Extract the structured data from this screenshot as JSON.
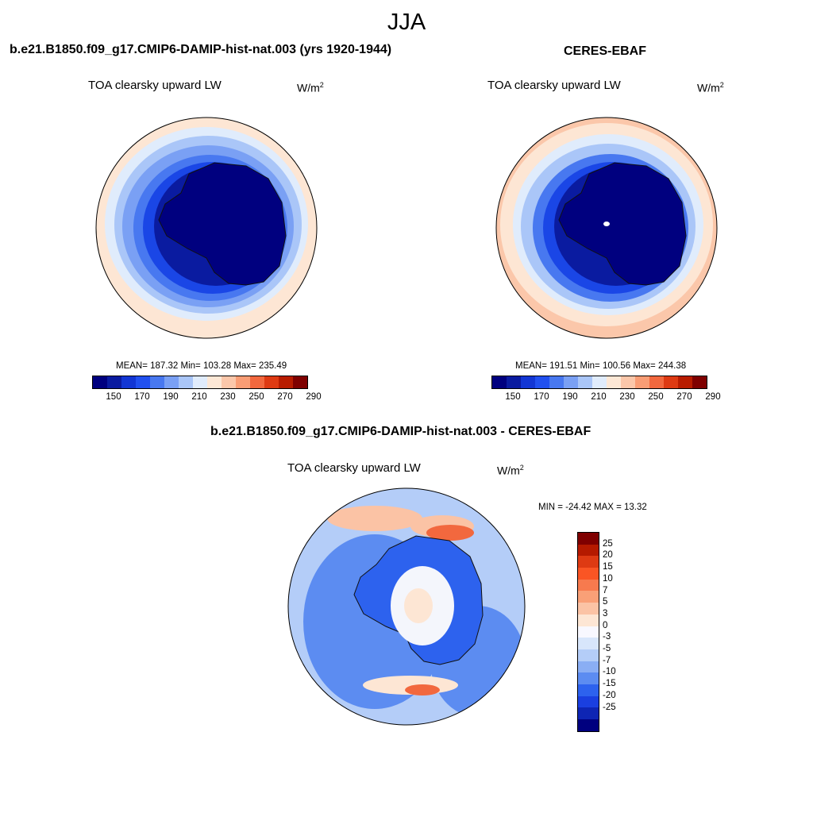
{
  "season": "JJA",
  "panel_left": {
    "title": "b.e21.B1850.f09_g17.CMIP6-DAMIP-hist-nat.003 (yrs 1920-1944)",
    "variable": "TOA clearsky upward LW",
    "units_base": "W/m",
    "units_exp": "2",
    "stats": "MEAN= 187.32  Min= 103.28  Max= 235.49"
  },
  "panel_right": {
    "title": "CERES-EBAF",
    "variable": "TOA clearsky upward LW",
    "units_base": "W/m",
    "units_exp": "2",
    "stats": "MEAN= 191.51  Min= 100.56  Max= 244.38"
  },
  "panel_diff": {
    "title": "b.e21.B1850.f09_g17.CMIP6-DAMIP-hist-nat.003 - CERES-EBAF",
    "variable": "TOA clearsky upward LW",
    "units_base": "W/m",
    "units_exp": "2",
    "stats": "MIN = -24.42 MAX =  13.32"
  },
  "colorbar_abs": {
    "colors": [
      "#00007f",
      "#0a1ba0",
      "#1236d4",
      "#2150ef",
      "#4878f0",
      "#7aa0f4",
      "#aac6f8",
      "#e0ecfc",
      "#fde8d6",
      "#fbc7aa",
      "#f99d75",
      "#f2683e",
      "#de3a13",
      "#b81c00",
      "#7f0000"
    ],
    "tick_labels": [
      "150",
      "170",
      "190",
      "210",
      "230",
      "250",
      "270",
      "290"
    ]
  },
  "colorbar_diff": {
    "colors": [
      "#7f0000",
      "#b51a00",
      "#de3a13",
      "#fa5524",
      "#f77a4e",
      "#f9a077",
      "#fbc3a5",
      "#fde6d4",
      "#f8f8ff",
      "#d8e6fb",
      "#b4cdf8",
      "#8aaef4",
      "#5c8cf1",
      "#2d62ee",
      "#1a3fe0",
      "#0e25b4",
      "#00007f"
    ],
    "tick_labels": [
      "25",
      "20",
      "15",
      "10",
      "7",
      "5",
      "3",
      "0",
      "-3",
      "-5",
      "-7",
      "-10",
      "-15",
      "-20",
      "-25"
    ]
  },
  "map_colors": {
    "ocean_warm": "#fde6d4",
    "ocean_warmer": "#fbc7aa",
    "ocean_cool": "#e0ecfc",
    "pale_blue": "#aac6f8",
    "mid_blue": "#4878f0",
    "blue": "#1a46e6",
    "deep_blue": "#0a1ba0",
    "navy": "#00007f",
    "diff_red": "#f2683e",
    "diff_white": "#f4f6fc"
  }
}
